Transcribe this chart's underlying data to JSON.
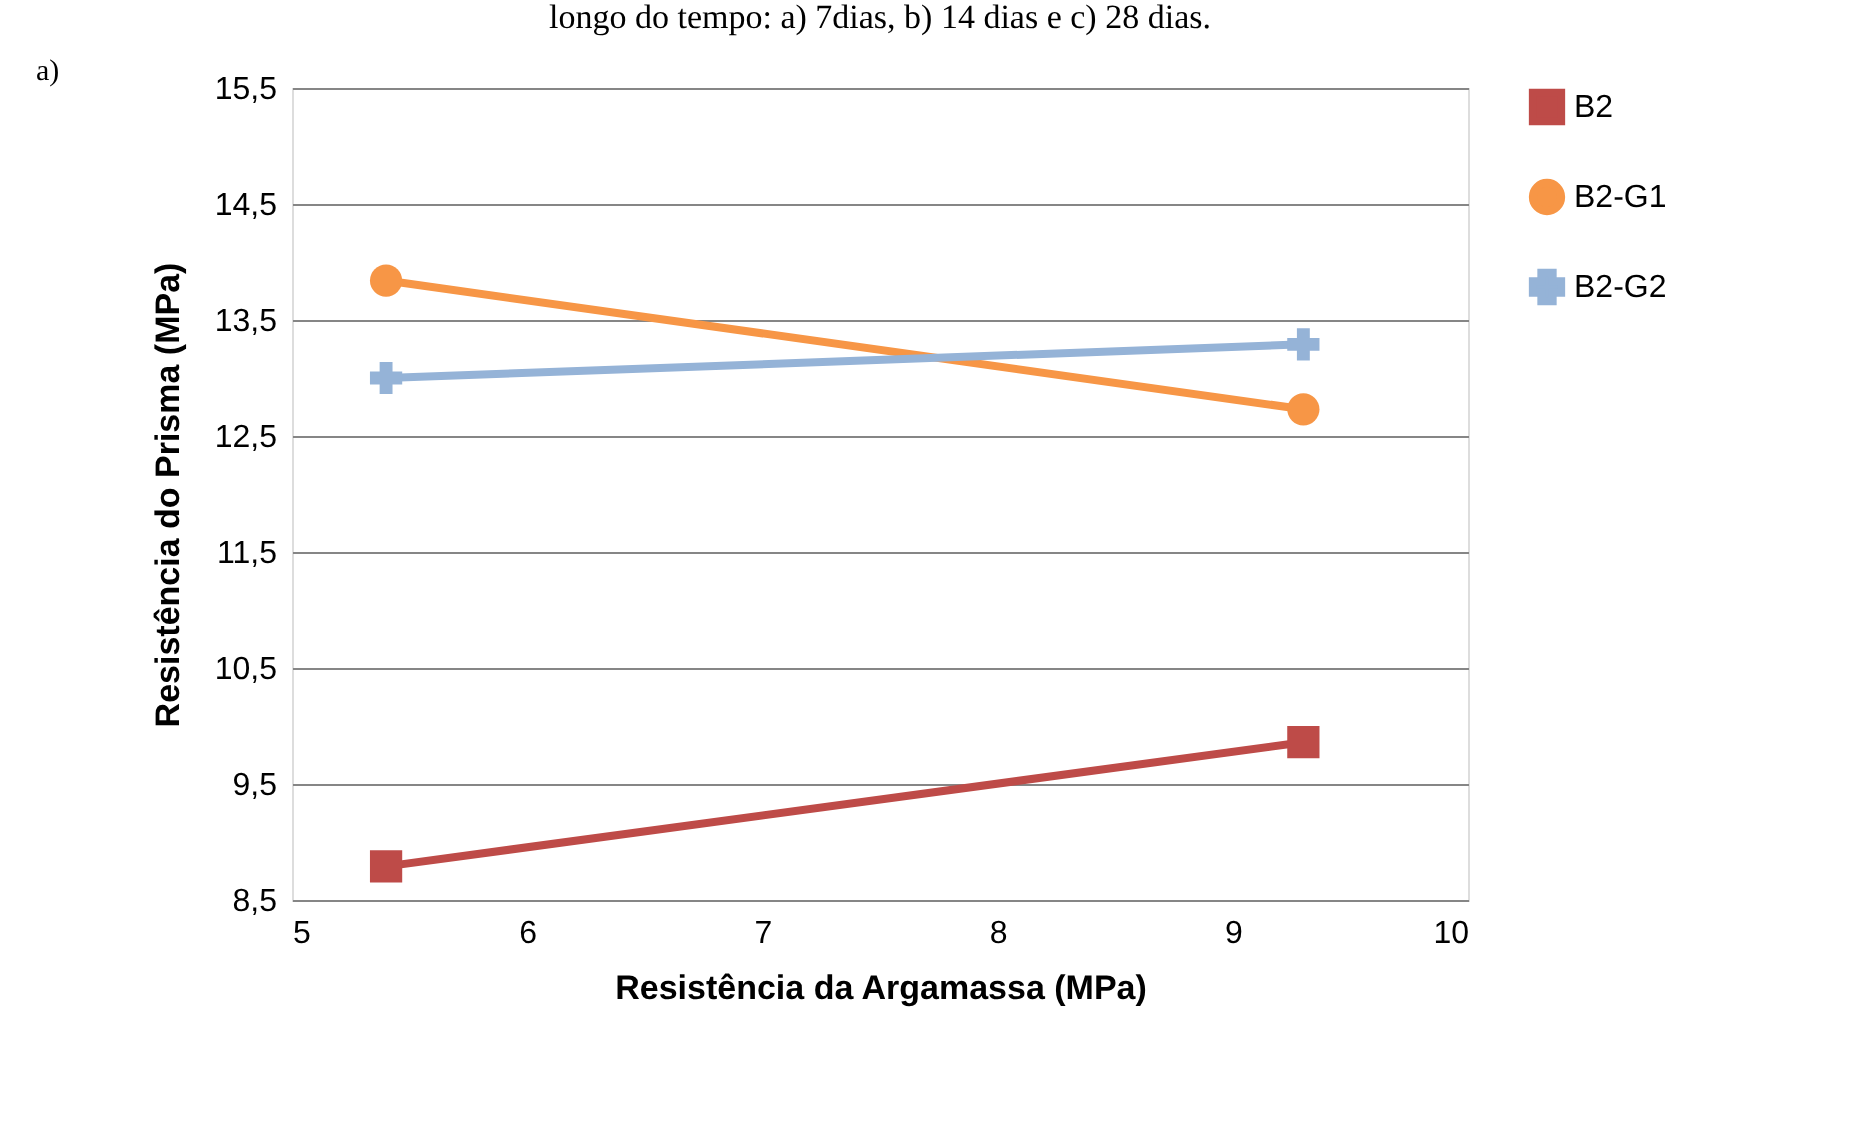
{
  "chart_data": {
    "type": "line",
    "xlabel": "Resistência da Argamassa (MPa)",
    "ylabel": "Resistência do Prisma (MPa)",
    "annotations": [
      "longo do tempo: a) 7dias, b) 14 dias e c) 28 dias.",
      "a)"
    ],
    "x": [
      5.4,
      9.3
    ],
    "series": [
      {
        "name": "B2",
        "color": "#be4b48",
        "marker": "square",
        "values": [
          8.79,
          9.86
        ]
      },
      {
        "name": "B2-G1",
        "color": "#f79646",
        "marker": "circle",
        "values": [
          13.84,
          12.73
        ]
      },
      {
        "name": "B2-G2",
        "color": "#95b3d7",
        "marker": "cross",
        "values": [
          13.0,
          13.29
        ]
      }
    ],
    "xlim": [
      5,
      10
    ],
    "xticks": [
      5,
      6,
      7,
      8,
      9,
      10
    ],
    "ylim": [
      8.5,
      15.5
    ],
    "yticks": [
      {
        "value": 8.5,
        "label": "8,5"
      },
      {
        "value": 9.5,
        "label": "9,5"
      },
      {
        "value": 10.5,
        "label": "10,5"
      },
      {
        "value": 11.5,
        "label": "11,5"
      },
      {
        "value": 12.5,
        "label": "12,5"
      },
      {
        "value": 13.5,
        "label": "13,5"
      },
      {
        "value": 14.5,
        "label": "14,5"
      },
      {
        "value": 15.5,
        "label": "15,5"
      }
    ],
    "grid": "y",
    "legend": "right"
  }
}
